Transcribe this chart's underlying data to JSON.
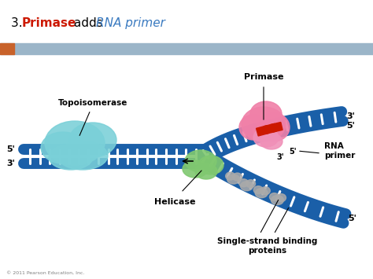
{
  "bg_color": "#ffffff",
  "header_bar_color": "#9bb5c8",
  "header_orange_color": "#c8622a",
  "dna_color": "#1a5fa8",
  "dna_rung_color": "#ffffff",
  "topoisomerase_color1": "#7ad0d8",
  "topoisomerase_color2": "#5bbfcc",
  "helicase_color": "#80c870",
  "primase_color": "#f080a8",
  "primase_lower_color": "#f090b8",
  "rna_primer_color": "#cc1800",
  "ssbp_color": "#aaaaaa",
  "label_color": "#000000",
  "copyright_text": "© 2011 Pearson Education, Inc.",
  "title_3": "3. ",
  "title_primase": "Primase",
  "title_adds": " adds ",
  "title_rna": "RNA primer",
  "title_primase_color": "#cc1800",
  "title_rna_color": "#3a7ac0",
  "title_fontsize": 11
}
